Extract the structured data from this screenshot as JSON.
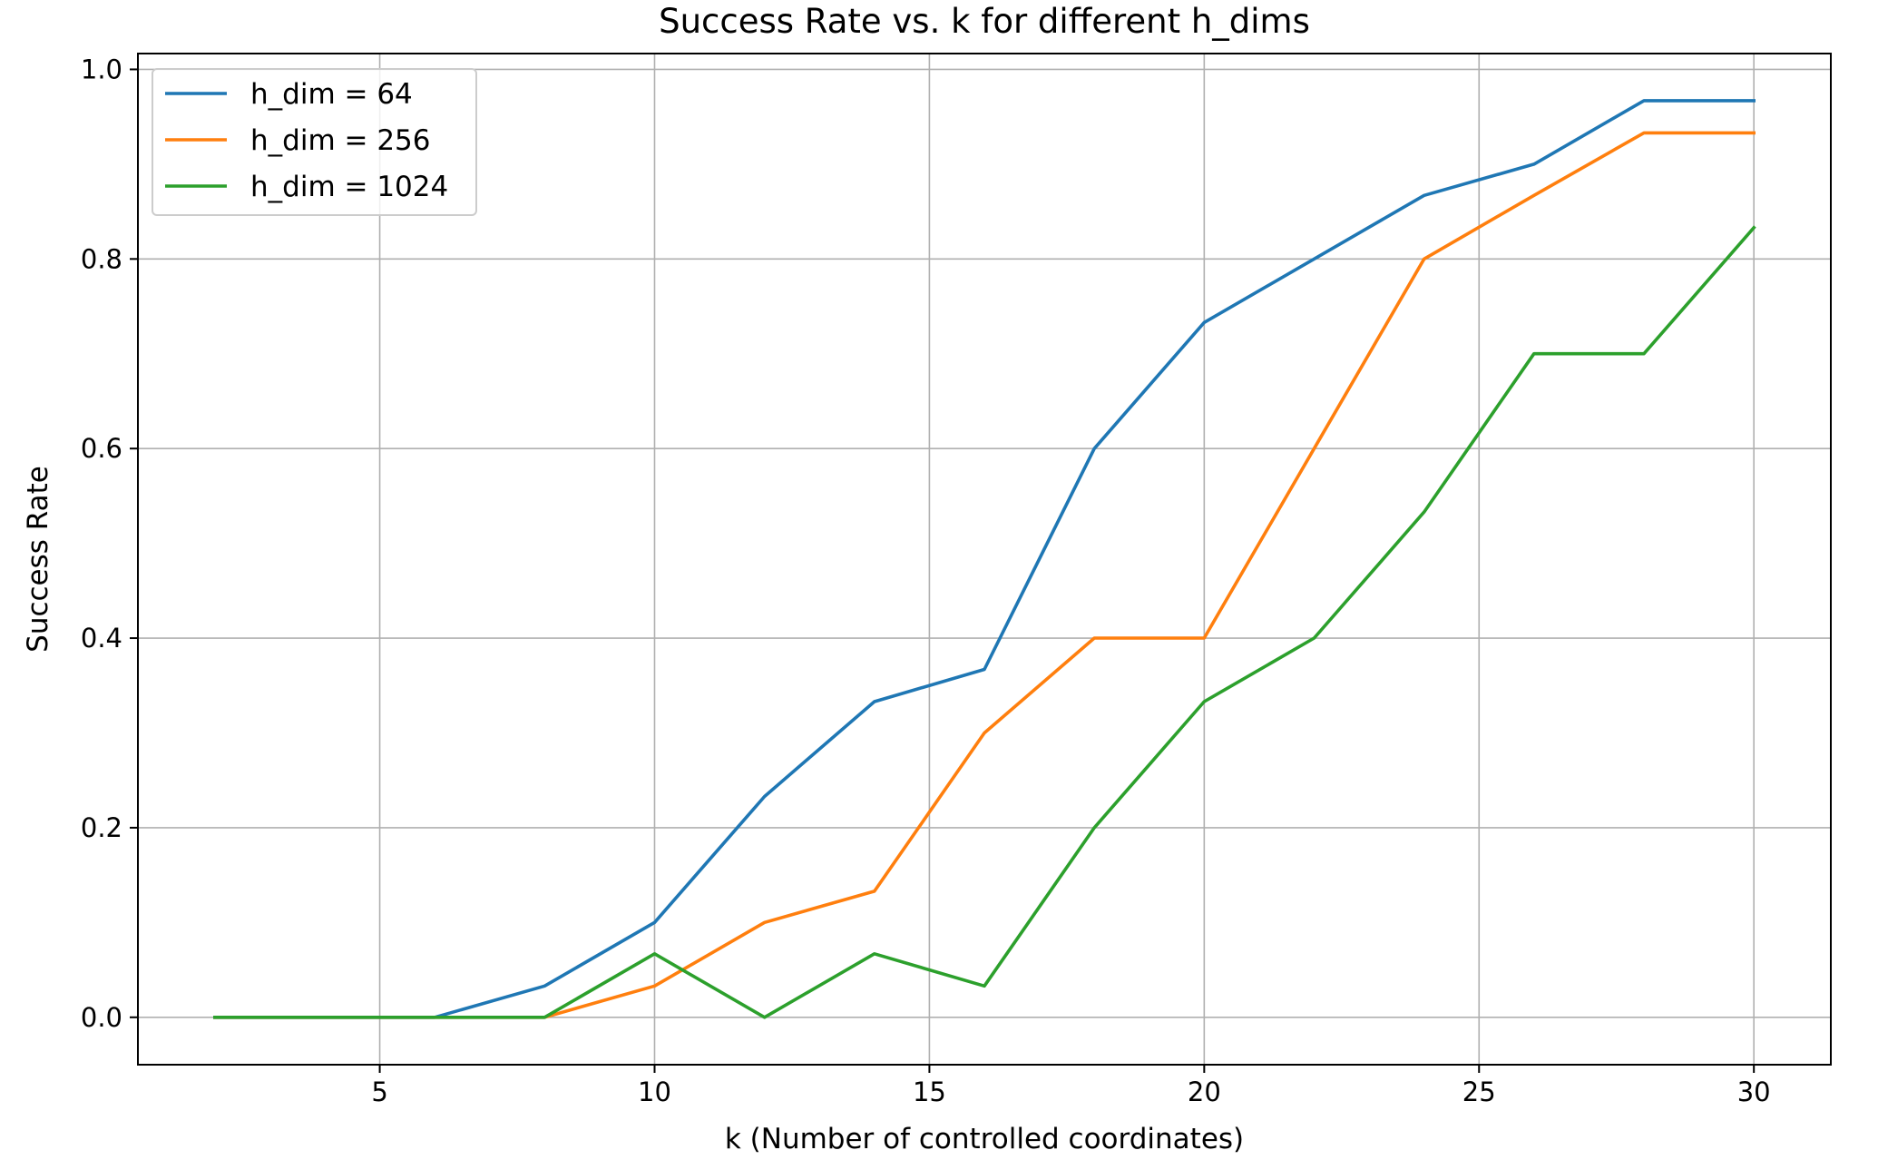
{
  "chart_data": {
    "type": "line",
    "title": "Success Rate vs. k for different h_dims",
    "xlabel": "k (Number of controlled coordinates)",
    "ylabel": "Success Rate",
    "xlim": [
      0.6,
      31.4
    ],
    "ylim": [
      -0.05,
      1.0167
    ],
    "xticks": [
      5,
      10,
      15,
      20,
      25,
      30
    ],
    "yticks": [
      0.0,
      0.2,
      0.4,
      0.6,
      0.8,
      1.0
    ],
    "xtick_labels": [
      "5",
      "10",
      "15",
      "20",
      "25",
      "30"
    ],
    "ytick_labels": [
      "0.0",
      "0.2",
      "0.4",
      "0.6",
      "0.8",
      "1.0"
    ],
    "grid": true,
    "legend_position": "upper left",
    "x": [
      2,
      4,
      6,
      8,
      10,
      12,
      14,
      16,
      18,
      20,
      22,
      24,
      26,
      28,
      30
    ],
    "series": [
      {
        "name": "h_dim = 64",
        "color": "#1f77b4",
        "values": [
          0.0,
          0.0,
          0.0,
          0.033,
          0.1,
          0.233,
          0.333,
          0.367,
          0.6,
          0.733,
          0.8,
          0.867,
          0.9,
          0.967,
          0.967
        ]
      },
      {
        "name": "h_dim = 256",
        "color": "#ff7f0e",
        "values": [
          0.0,
          0.0,
          0.0,
          0.0,
          0.033,
          0.1,
          0.133,
          0.3,
          0.4,
          0.4,
          0.6,
          0.8,
          0.867,
          0.933,
          0.933
        ]
      },
      {
        "name": "h_dim = 1024",
        "color": "#2ca02c",
        "values": [
          0.0,
          0.0,
          0.0,
          0.0,
          0.067,
          0.0,
          0.067,
          0.033,
          0.2,
          0.333,
          0.4,
          0.533,
          0.7,
          0.7,
          0.833
        ]
      }
    ]
  }
}
